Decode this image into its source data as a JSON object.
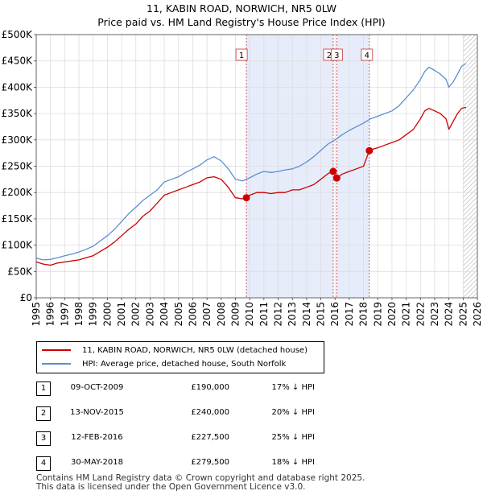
{
  "chart_data": {
    "type": "line",
    "title": "11, KABIN ROAD, NORWICH, NR5 0LW",
    "subtitle": "Price paid vs. HM Land Registry's House Price Index (HPI)",
    "xlabel": "",
    "ylabel": "",
    "xlim": [
      1995,
      2026
    ],
    "ylim": [
      0,
      500000
    ],
    "x_ticks": [
      "1995",
      "1996",
      "1997",
      "1998",
      "1999",
      "2000",
      "2001",
      "2002",
      "2003",
      "2004",
      "2005",
      "2006",
      "2007",
      "2008",
      "2009",
      "2010",
      "2011",
      "2012",
      "2013",
      "2014",
      "2015",
      "2016",
      "2017",
      "2018",
      "2019",
      "2020",
      "2021",
      "2022",
      "2023",
      "2024",
      "2025",
      "2026"
    ],
    "y_ticks": [
      {
        "value": 0,
        "label": "£0"
      },
      {
        "value": 50000,
        "label": "£50K"
      },
      {
        "value": 100000,
        "label": "£100K"
      },
      {
        "value": 150000,
        "label": "£150K"
      },
      {
        "value": 200000,
        "label": "£200K"
      },
      {
        "value": 250000,
        "label": "£250K"
      },
      {
        "value": 300000,
        "label": "£300K"
      },
      {
        "value": 350000,
        "label": "£350K"
      },
      {
        "value": 400000,
        "label": "£400K"
      },
      {
        "value": 450000,
        "label": "£450K"
      },
      {
        "value": 500000,
        "label": "£500K"
      }
    ],
    "grid": true,
    "series": [
      {
        "name": "11, KABIN ROAD, NORWICH, NR5 0LW (detached house)",
        "color": "#cc0000",
        "x": [
          1995.0,
          1995.5,
          1996.0,
          1996.5,
          1997.0,
          1997.5,
          1998.0,
          1998.5,
          1999.0,
          1999.5,
          2000.0,
          2000.5,
          2001.0,
          2001.5,
          2002.0,
          2002.5,
          2003.0,
          2003.5,
          2004.0,
          2004.5,
          2005.0,
          2005.5,
          2006.0,
          2006.5,
          2007.0,
          2007.5,
          2008.0,
          2008.5,
          2009.0,
          2009.5,
          2009.77,
          2010.0,
          2010.5,
          2011.0,
          2011.5,
          2012.0,
          2012.5,
          2013.0,
          2013.5,
          2014.0,
          2014.5,
          2015.0,
          2015.5,
          2015.87,
          2016.12,
          2016.5,
          2017.0,
          2017.5,
          2018.0,
          2018.41,
          2018.6,
          2019.0,
          2019.5,
          2020.0,
          2020.5,
          2021.0,
          2021.5,
          2022.0,
          2022.3,
          2022.6,
          2023.0,
          2023.4,
          2023.8,
          2024.0,
          2024.3,
          2024.6,
          2024.9,
          2025.2
        ],
        "values": [
          68000,
          64000,
          62000,
          66000,
          68000,
          70000,
          72000,
          76000,
          80000,
          88000,
          96000,
          106000,
          118000,
          130000,
          140000,
          155000,
          165000,
          180000,
          195000,
          200000,
          205000,
          210000,
          215000,
          220000,
          228000,
          230000,
          225000,
          210000,
          190000,
          188000,
          190000,
          195000,
          200000,
          200000,
          198000,
          200000,
          200000,
          205000,
          205000,
          210000,
          215000,
          225000,
          236000,
          240000,
          227500,
          235000,
          240000,
          245000,
          250000,
          279500,
          282000,
          285000,
          290000,
          295000,
          300000,
          310000,
          320000,
          340000,
          355000,
          360000,
          355000,
          350000,
          340000,
          320000,
          335000,
          350000,
          360000,
          362000
        ]
      },
      {
        "name": "HPI: Average price, detached house, South Norfolk",
        "color": "#5b8fd0",
        "x": [
          1995.0,
          1995.5,
          1996.0,
          1996.5,
          1997.0,
          1997.5,
          1998.0,
          1998.5,
          1999.0,
          1999.5,
          2000.0,
          2000.5,
          2001.0,
          2001.5,
          2002.0,
          2002.5,
          2003.0,
          2003.5,
          2004.0,
          2004.5,
          2005.0,
          2005.5,
          2006.0,
          2006.5,
          2007.0,
          2007.5,
          2008.0,
          2008.5,
          2009.0,
          2009.5,
          2010.0,
          2010.5,
          2011.0,
          2011.5,
          2012.0,
          2012.5,
          2013.0,
          2013.5,
          2014.0,
          2014.5,
          2015.0,
          2015.5,
          2016.0,
          2016.5,
          2017.0,
          2017.5,
          2018.0,
          2018.5,
          2019.0,
          2019.5,
          2020.0,
          2020.5,
          2021.0,
          2021.5,
          2022.0,
          2022.3,
          2022.6,
          2023.0,
          2023.4,
          2023.8,
          2024.0,
          2024.3,
          2024.6,
          2024.9,
          2025.2
        ],
        "values": [
          75000,
          72000,
          73000,
          76000,
          80000,
          83000,
          87000,
          92000,
          98000,
          108000,
          118000,
          130000,
          145000,
          160000,
          172000,
          185000,
          195000,
          205000,
          220000,
          225000,
          230000,
          238000,
          245000,
          252000,
          262000,
          268000,
          260000,
          245000,
          225000,
          222000,
          228000,
          235000,
          240000,
          238000,
          240000,
          243000,
          245000,
          250000,
          258000,
          268000,
          280000,
          292000,
          300000,
          310000,
          318000,
          325000,
          332000,
          340000,
          345000,
          350000,
          355000,
          365000,
          380000,
          395000,
          415000,
          430000,
          438000,
          432000,
          425000,
          415000,
          400000,
          410000,
          425000,
          440000,
          445000
        ]
      }
    ],
    "sale_markers": [
      {
        "num": "1",
        "x": 2009.77,
        "value": 190000
      },
      {
        "num": "2",
        "x": 2015.87,
        "value": 240000
      },
      {
        "num": "3",
        "x": 2016.12,
        "value": 227500
      },
      {
        "num": "4",
        "x": 2018.41,
        "value": 279500
      }
    ],
    "shaded_spans": [
      [
        2009.77,
        2015.87
      ],
      [
        2016.12,
        2018.41
      ]
    ],
    "hatched_from": 2025.0
  },
  "legend": {
    "entries": [
      {
        "label": "11, KABIN ROAD, NORWICH, NR5 0LW (detached house)",
        "color": "#cc0000"
      },
      {
        "label": "HPI: Average price, detached house, South Norfolk",
        "color": "#5b8fd0"
      }
    ]
  },
  "sales": [
    {
      "num": "1",
      "date": "09-OCT-2009",
      "price": "£190,000",
      "diff": "17% ↓ HPI"
    },
    {
      "num": "2",
      "date": "13-NOV-2015",
      "price": "£240,000",
      "diff": "20% ↓ HPI"
    },
    {
      "num": "3",
      "date": "12-FEB-2016",
      "price": "£227,500",
      "diff": "25% ↓ HPI"
    },
    {
      "num": "4",
      "date": "30-MAY-2018",
      "price": "£279,500",
      "diff": "18% ↓ HPI"
    }
  ],
  "footer": "Contains HM Land Registry data © Crown copyright and database right 2025.\nThis data is licensed under the Open Government Licence v3.0."
}
